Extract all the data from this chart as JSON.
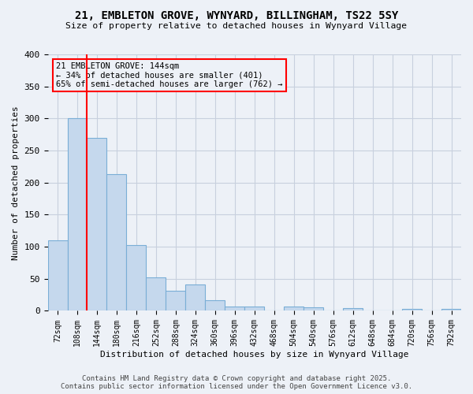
{
  "title_line1": "21, EMBLETON GROVE, WYNYARD, BILLINGHAM, TS22 5SY",
  "title_line2": "Size of property relative to detached houses in Wynyard Village",
  "xlabel": "Distribution of detached houses by size in Wynyard Village",
  "ylabel": "Number of detached properties",
  "bar_values": [
    110,
    300,
    270,
    213,
    102,
    52,
    31,
    41,
    17,
    7,
    7,
    0,
    7,
    5,
    1,
    4,
    0,
    0,
    3,
    0,
    3
  ],
  "bar_labels": [
    "72sqm",
    "108sqm",
    "144sqm",
    "180sqm",
    "216sqm",
    "252sqm",
    "288sqm",
    "324sqm",
    "360sqm",
    "396sqm",
    "432sqm",
    "468sqm",
    "504sqm",
    "540sqm",
    "576sqm",
    "612sqm",
    "648sqm",
    "684sqm",
    "720sqm",
    "756sqm",
    "792sqm"
  ],
  "bar_color": "#c5d8ed",
  "bar_edge_color": "#7aaed6",
  "grid_color": "#c8d0de",
  "background_color": "#edf1f7",
  "red_line_index": 2,
  "annotation_box_text": "21 EMBLETON GROVE: 144sqm\n← 34% of detached houses are smaller (401)\n65% of semi-detached houses are larger (762) →",
  "footer_text": "Contains HM Land Registry data © Crown copyright and database right 2025.\nContains public sector information licensed under the Open Government Licence v3.0.",
  "ylim": [
    0,
    400
  ],
  "yticks": [
    0,
    50,
    100,
    150,
    200,
    250,
    300,
    350,
    400
  ]
}
